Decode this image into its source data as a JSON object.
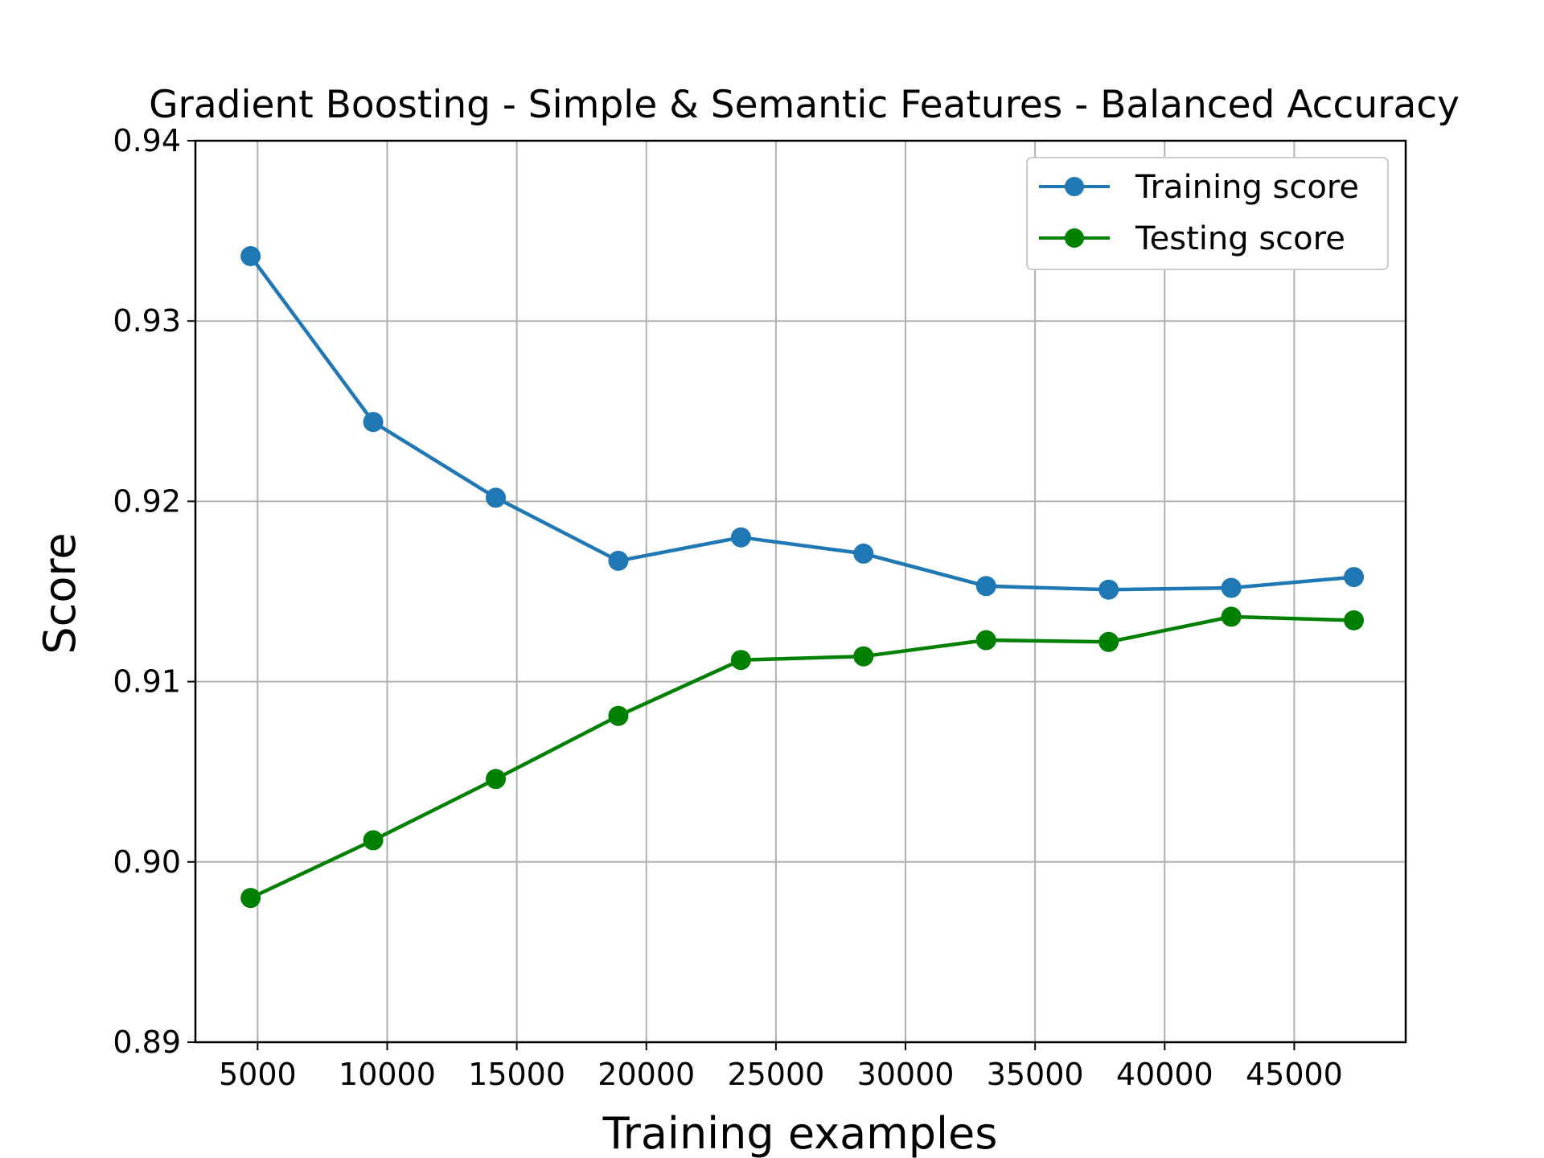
{
  "chart_data": {
    "type": "line",
    "title": "Gradient Boosting - Simple & Semantic Features - Balanced Accuracy",
    "xlabel": "Training examples",
    "ylabel": "Score",
    "xlim": [
      2600,
      49300
    ],
    "ylim": [
      0.89,
      0.94
    ],
    "xticks": [
      5000,
      10000,
      15000,
      20000,
      25000,
      30000,
      35000,
      40000,
      45000
    ],
    "yticks": [
      0.89,
      0.9,
      0.91,
      0.92,
      0.93,
      0.94
    ],
    "ytick_labels": [
      "0.89",
      "0.90",
      "0.91",
      "0.92",
      "0.93",
      "0.94"
    ],
    "grid": true,
    "legend_position": "top-right",
    "x": [
      4730,
      9460,
      14190,
      18920,
      23650,
      28380,
      33110,
      37840,
      42570,
      47300
    ],
    "series": [
      {
        "name": "Training score",
        "color": "#1f77b4",
        "values": [
          0.9336,
          0.9244,
          0.9202,
          0.9167,
          0.918,
          0.9171,
          0.9153,
          0.9151,
          0.9152,
          0.9158
        ]
      },
      {
        "name": "Testing score",
        "color": "#008000",
        "values": [
          0.898,
          0.9012,
          0.9046,
          0.9081,
          0.9112,
          0.9114,
          0.9123,
          0.9122,
          0.9136,
          0.9134
        ]
      }
    ]
  }
}
